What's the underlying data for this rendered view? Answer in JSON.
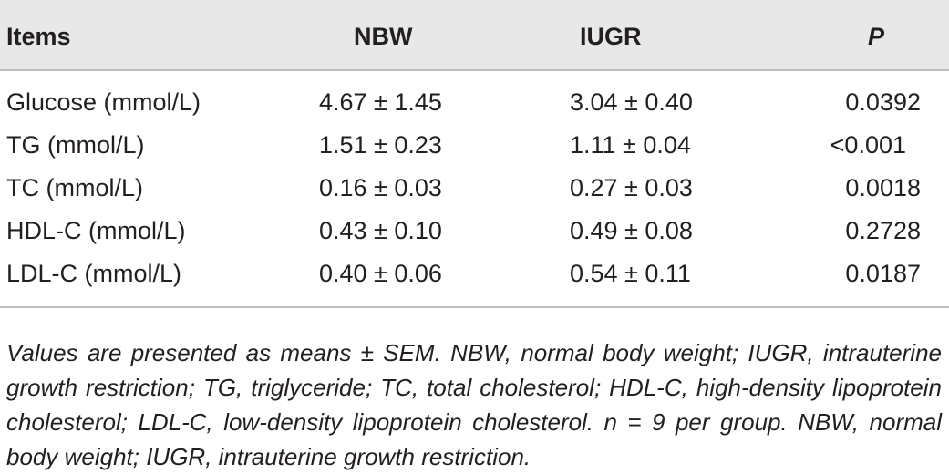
{
  "table": {
    "headers": {
      "items": "Items",
      "nbw": "NBW",
      "iugr": "IUGR",
      "p": "P"
    },
    "rows": [
      {
        "item": "Glucose (mmol/L)",
        "nbw": "4.67 ± 1.45",
        "iugr": "3.04 ± 0.40",
        "p": "0.0392"
      },
      {
        "item": "TG (mmol/L)",
        "nbw": "1.51 ± 0.23",
        "iugr": "1.11 ± 0.04",
        "p": "<0.001"
      },
      {
        "item": "TC (mmol/L)",
        "nbw": "0.16 ± 0.03",
        "iugr": "0.27 ± 0.03",
        "p": "0.0018"
      },
      {
        "item": "HDL-C (mmol/L)",
        "nbw": "0.43 ± 0.10",
        "iugr": "0.49 ± 0.08",
        "p": "0.2728"
      },
      {
        "item": "LDL-C (mmol/L)",
        "nbw": "0.40 ± 0.06",
        "iugr": "0.54 ± 0.11",
        "p": "0.0187"
      }
    ],
    "footnote": "Values are presented as means ± SEM. NBW, normal body weight; IUGR, intrauterine growth restriction; TG, triglyceride; TC, total cholesterol; HDL-C, high-density lipoprotein cholesterol; LDL-C, low-density lipoprotein cholesterol. n = 9 per group. NBW, normal body weight; IUGR, intrauterine growth restriction."
  },
  "colors": {
    "header_background": "#e8e8e8",
    "text": "#231f20",
    "rule": "#bdbdbd"
  }
}
